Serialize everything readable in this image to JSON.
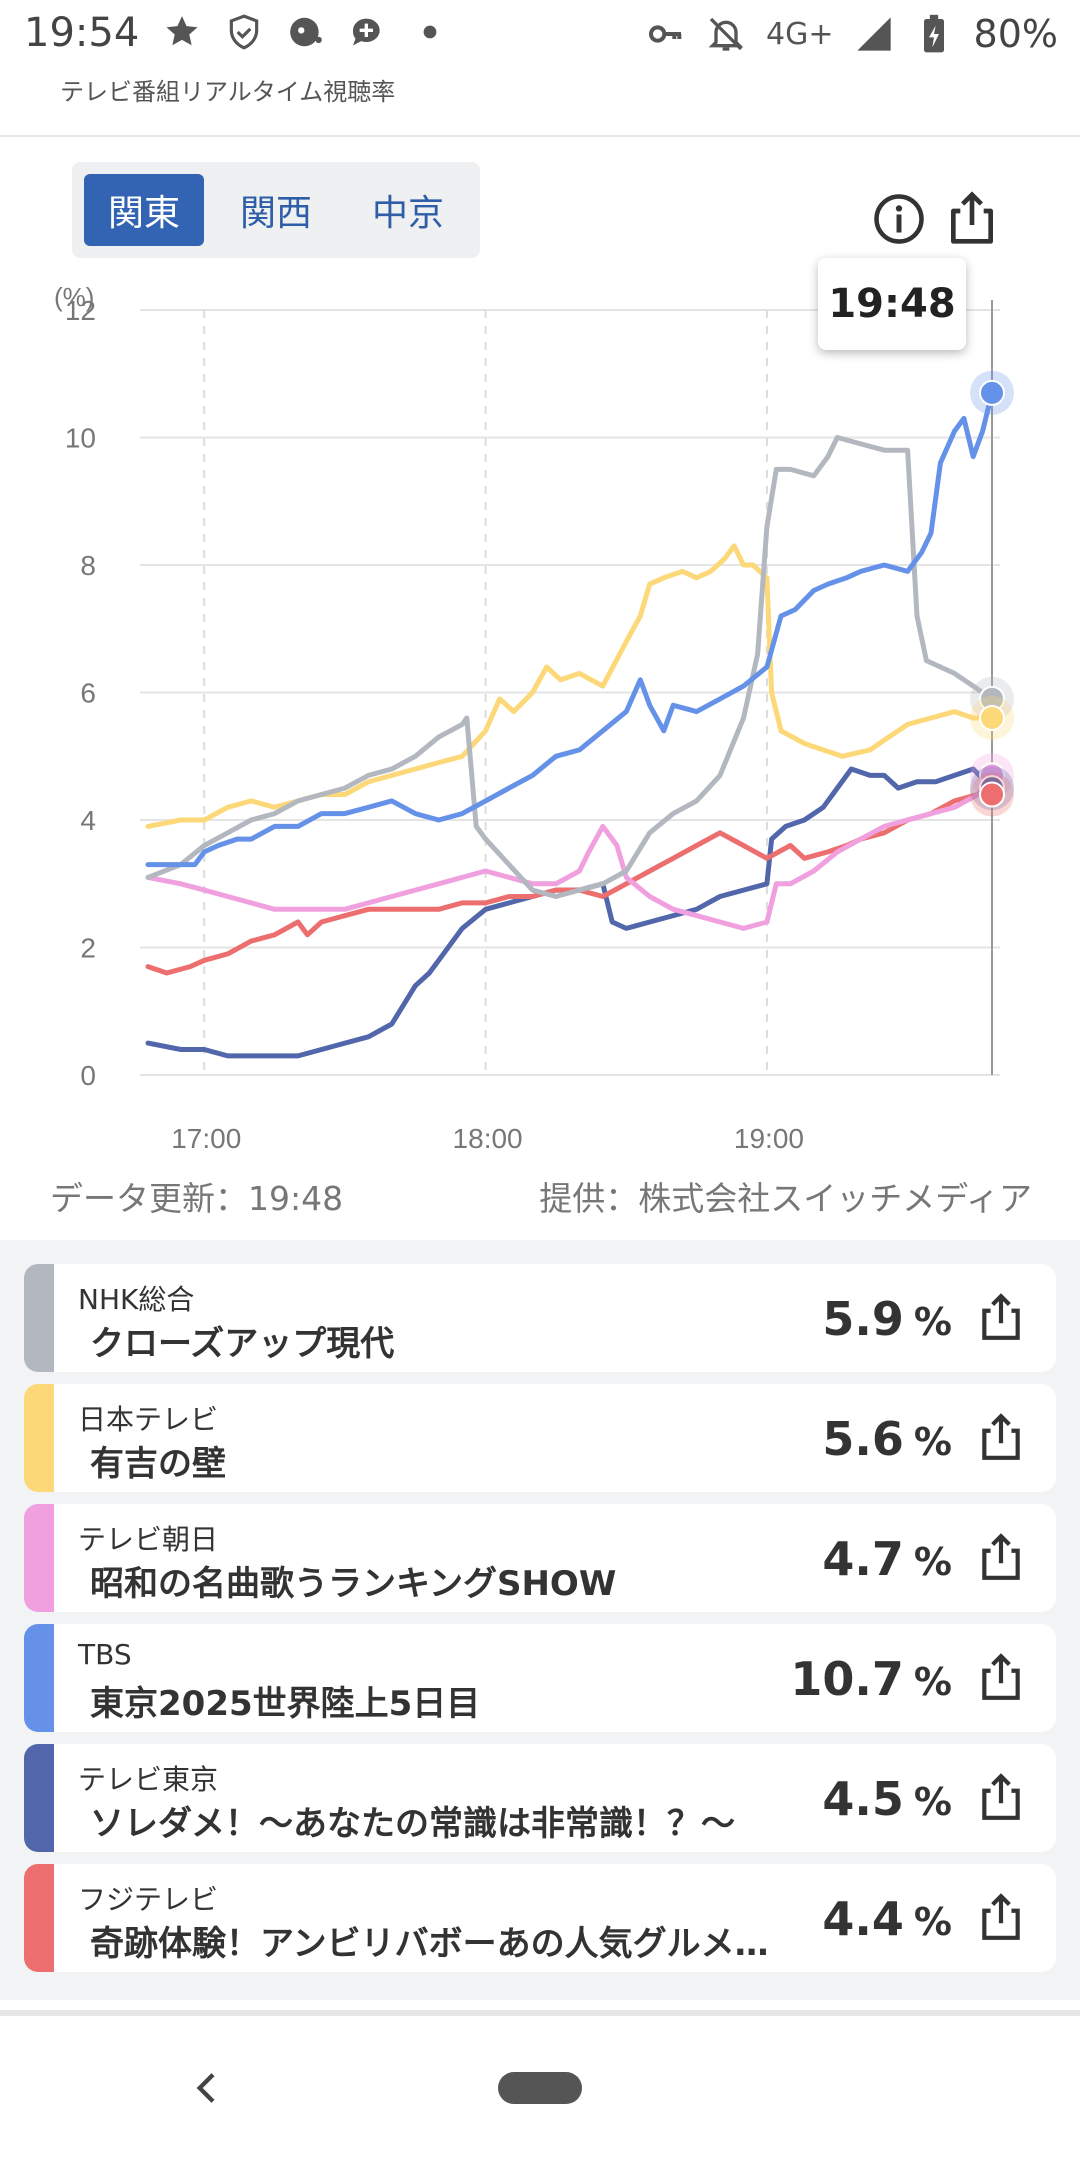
{
  "status_bar": {
    "time": "19:54",
    "network": "4G+",
    "battery": "80%",
    "icons_left": [
      "star-icon",
      "shield-icon",
      "vpn-face-icon",
      "chat-plus-icon",
      "dot-icon"
    ],
    "icons_right": [
      "key-icon",
      "bell-off-icon",
      "signal-icon",
      "battery-icon"
    ]
  },
  "app": {
    "title": "テレビ番組リアルタイム視聴率"
  },
  "tabs": [
    {
      "label": "関東",
      "active": true
    },
    {
      "label": "関西",
      "active": false
    },
    {
      "label": "中京",
      "active": false
    }
  ],
  "toolbar": {
    "info_icon": "info-icon",
    "share_icon": "share-icon"
  },
  "chart_data": {
    "type": "line",
    "ylabel": "(%)",
    "ylim": [
      0,
      12
    ],
    "yticks": [
      "12",
      "10",
      "8",
      "6",
      "4",
      "2",
      "0"
    ],
    "xlim": [
      "16:48",
      "19:48"
    ],
    "xticks": [
      "17:00",
      "18:00",
      "19:00"
    ],
    "cursor_time": "19:48",
    "grid": true,
    "series": [
      {
        "id": "nhk",
        "color": "#b3b8c0",
        "points": [
          [
            "16:48",
            3.1
          ],
          [
            "16:55",
            3.3
          ],
          [
            "17:00",
            3.6
          ],
          [
            "17:05",
            3.8
          ],
          [
            "17:10",
            4.0
          ],
          [
            "17:15",
            4.1
          ],
          [
            "17:20",
            4.3
          ],
          [
            "17:25",
            4.4
          ],
          [
            "17:30",
            4.5
          ],
          [
            "17:35",
            4.7
          ],
          [
            "17:40",
            4.8
          ],
          [
            "17:45",
            5.0
          ],
          [
            "17:50",
            5.3
          ],
          [
            "17:55",
            5.5
          ],
          [
            "17:56",
            5.6
          ],
          [
            "17:58",
            3.9
          ],
          [
            "18:00",
            3.7
          ],
          [
            "18:05",
            3.3
          ],
          [
            "18:10",
            2.9
          ],
          [
            "18:15",
            2.8
          ],
          [
            "18:20",
            2.9
          ],
          [
            "18:25",
            3.0
          ],
          [
            "18:30",
            3.2
          ],
          [
            "18:35",
            3.8
          ],
          [
            "18:40",
            4.1
          ],
          [
            "18:45",
            4.3
          ],
          [
            "18:50",
            4.7
          ],
          [
            "18:55",
            5.6
          ],
          [
            "18:58",
            6.6
          ],
          [
            "19:00",
            8.6
          ],
          [
            "19:02",
            9.5
          ],
          [
            "19:05",
            9.5
          ],
          [
            "19:10",
            9.4
          ],
          [
            "19:13",
            9.7
          ],
          [
            "19:15",
            10.0
          ],
          [
            "19:20",
            9.9
          ],
          [
            "19:25",
            9.8
          ],
          [
            "19:30",
            9.8
          ],
          [
            "19:32",
            7.2
          ],
          [
            "19:34",
            6.5
          ],
          [
            "19:40",
            6.3
          ],
          [
            "19:44",
            6.1
          ],
          [
            "19:48",
            5.9
          ]
        ]
      },
      {
        "id": "ntv",
        "color": "#fdd878",
        "points": [
          [
            "16:48",
            3.9
          ],
          [
            "16:55",
            4.0
          ],
          [
            "17:00",
            4.0
          ],
          [
            "17:05",
            4.2
          ],
          [
            "17:10",
            4.3
          ],
          [
            "17:15",
            4.2
          ],
          [
            "17:20",
            4.3
          ],
          [
            "17:25",
            4.4
          ],
          [
            "17:30",
            4.4
          ],
          [
            "17:35",
            4.6
          ],
          [
            "17:40",
            4.7
          ],
          [
            "17:45",
            4.8
          ],
          [
            "17:50",
            4.9
          ],
          [
            "17:55",
            5.0
          ],
          [
            "18:00",
            5.4
          ],
          [
            "18:03",
            5.9
          ],
          [
            "18:06",
            5.7
          ],
          [
            "18:10",
            6.0
          ],
          [
            "18:13",
            6.4
          ],
          [
            "18:16",
            6.2
          ],
          [
            "18:20",
            6.3
          ],
          [
            "18:25",
            6.1
          ],
          [
            "18:30",
            6.8
          ],
          [
            "18:33",
            7.2
          ],
          [
            "18:35",
            7.7
          ],
          [
            "18:38",
            7.8
          ],
          [
            "18:42",
            7.9
          ],
          [
            "18:45",
            7.8
          ],
          [
            "18:48",
            7.9
          ],
          [
            "18:51",
            8.1
          ],
          [
            "18:53",
            8.3
          ],
          [
            "18:55",
            8.0
          ],
          [
            "18:57",
            8.0
          ],
          [
            "19:00",
            7.8
          ],
          [
            "19:01",
            6.0
          ],
          [
            "19:03",
            5.4
          ],
          [
            "19:08",
            5.2
          ],
          [
            "19:12",
            5.1
          ],
          [
            "19:16",
            5.0
          ],
          [
            "19:22",
            5.1
          ],
          [
            "19:26",
            5.3
          ],
          [
            "19:30",
            5.5
          ],
          [
            "19:35",
            5.6
          ],
          [
            "19:40",
            5.7
          ],
          [
            "19:44",
            5.6
          ],
          [
            "19:48",
            5.6
          ]
        ]
      },
      {
        "id": "tbs",
        "color": "#6592e8",
        "points": [
          [
            "16:48",
            3.3
          ],
          [
            "16:53",
            3.3
          ],
          [
            "16:58",
            3.3
          ],
          [
            "17:00",
            3.5
          ],
          [
            "17:03",
            3.6
          ],
          [
            "17:07",
            3.7
          ],
          [
            "17:10",
            3.7
          ],
          [
            "17:15",
            3.9
          ],
          [
            "17:20",
            3.9
          ],
          [
            "17:25",
            4.1
          ],
          [
            "17:30",
            4.1
          ],
          [
            "17:35",
            4.2
          ],
          [
            "17:40",
            4.3
          ],
          [
            "17:45",
            4.1
          ],
          [
            "17:50",
            4.0
          ],
          [
            "17:55",
            4.1
          ],
          [
            "18:00",
            4.3
          ],
          [
            "18:05",
            4.5
          ],
          [
            "18:10",
            4.7
          ],
          [
            "18:15",
            5.0
          ],
          [
            "18:20",
            5.1
          ],
          [
            "18:25",
            5.4
          ],
          [
            "18:30",
            5.7
          ],
          [
            "18:33",
            6.2
          ],
          [
            "18:35",
            5.8
          ],
          [
            "18:38",
            5.4
          ],
          [
            "18:40",
            5.8
          ],
          [
            "18:45",
            5.7
          ],
          [
            "18:50",
            5.9
          ],
          [
            "18:55",
            6.1
          ],
          [
            "19:00",
            6.4
          ],
          [
            "19:03",
            7.2
          ],
          [
            "19:06",
            7.3
          ],
          [
            "19:10",
            7.6
          ],
          [
            "19:13",
            7.7
          ],
          [
            "19:17",
            7.8
          ],
          [
            "19:20",
            7.9
          ],
          [
            "19:25",
            8.0
          ],
          [
            "19:30",
            7.9
          ],
          [
            "19:33",
            8.2
          ],
          [
            "19:35",
            8.5
          ],
          [
            "19:37",
            9.6
          ],
          [
            "19:40",
            10.1
          ],
          [
            "19:42",
            10.3
          ],
          [
            "19:44",
            9.7
          ],
          [
            "19:46",
            10.1
          ],
          [
            "19:48",
            10.7
          ]
        ]
      },
      {
        "id": "asahi",
        "color": "#f0a0de",
        "points": [
          [
            "16:48",
            3.1
          ],
          [
            "16:55",
            3.0
          ],
          [
            "17:00",
            2.9
          ],
          [
            "17:05",
            2.8
          ],
          [
            "17:10",
            2.7
          ],
          [
            "17:15",
            2.6
          ],
          [
            "17:20",
            2.6
          ],
          [
            "17:25",
            2.6
          ],
          [
            "17:30",
            2.6
          ],
          [
            "17:35",
            2.7
          ],
          [
            "17:40",
            2.8
          ],
          [
            "17:45",
            2.9
          ],
          [
            "17:50",
            3.0
          ],
          [
            "17:55",
            3.1
          ],
          [
            "18:00",
            3.2
          ],
          [
            "18:05",
            3.1
          ],
          [
            "18:10",
            3.0
          ],
          [
            "18:15",
            3.0
          ],
          [
            "18:20",
            3.2
          ],
          [
            "18:22",
            3.5
          ],
          [
            "18:25",
            3.9
          ],
          [
            "18:28",
            3.6
          ],
          [
            "18:30",
            3.1
          ],
          [
            "18:35",
            2.8
          ],
          [
            "18:40",
            2.6
          ],
          [
            "18:45",
            2.5
          ],
          [
            "18:50",
            2.4
          ],
          [
            "18:55",
            2.3
          ],
          [
            "19:00",
            2.4
          ],
          [
            "19:02",
            3.0
          ],
          [
            "19:05",
            3.0
          ],
          [
            "19:10",
            3.2
          ],
          [
            "19:15",
            3.5
          ],
          [
            "19:20",
            3.7
          ],
          [
            "19:25",
            3.9
          ],
          [
            "19:30",
            4.0
          ],
          [
            "19:35",
            4.1
          ],
          [
            "19:40",
            4.2
          ],
          [
            "19:45",
            4.4
          ],
          [
            "19:48",
            4.7
          ]
        ]
      },
      {
        "id": "tx",
        "color": "#5267ab",
        "points": [
          [
            "16:48",
            0.5
          ],
          [
            "16:55",
            0.4
          ],
          [
            "17:00",
            0.4
          ],
          [
            "17:05",
            0.3
          ],
          [
            "17:10",
            0.3
          ],
          [
            "17:15",
            0.3
          ],
          [
            "17:20",
            0.3
          ],
          [
            "17:25",
            0.4
          ],
          [
            "17:30",
            0.5
          ],
          [
            "17:35",
            0.6
          ],
          [
            "17:40",
            0.8
          ],
          [
            "17:45",
            1.4
          ],
          [
            "17:48",
            1.6
          ],
          [
            "17:50",
            1.8
          ],
          [
            "17:55",
            2.3
          ],
          [
            "18:00",
            2.6
          ],
          [
            "18:05",
            2.7
          ],
          [
            "18:10",
            2.8
          ],
          [
            "18:15",
            2.9
          ],
          [
            "18:20",
            2.9
          ],
          [
            "18:25",
            3.0
          ],
          [
            "18:27",
            2.4
          ],
          [
            "18:30",
            2.3
          ],
          [
            "18:35",
            2.4
          ],
          [
            "18:40",
            2.5
          ],
          [
            "18:45",
            2.6
          ],
          [
            "18:50",
            2.8
          ],
          [
            "18:55",
            2.9
          ],
          [
            "19:00",
            3.0
          ],
          [
            "19:01",
            3.7
          ],
          [
            "19:04",
            3.9
          ],
          [
            "19:08",
            4.0
          ],
          [
            "19:12",
            4.2
          ],
          [
            "19:15",
            4.5
          ],
          [
            "19:18",
            4.8
          ],
          [
            "19:22",
            4.7
          ],
          [
            "19:25",
            4.7
          ],
          [
            "19:28",
            4.5
          ],
          [
            "19:32",
            4.6
          ],
          [
            "19:36",
            4.6
          ],
          [
            "19:40",
            4.7
          ],
          [
            "19:44",
            4.8
          ],
          [
            "19:48",
            4.5
          ]
        ]
      },
      {
        "id": "fuji",
        "color": "#ec6e6e",
        "points": [
          [
            "16:48",
            1.7
          ],
          [
            "16:52",
            1.6
          ],
          [
            "16:57",
            1.7
          ],
          [
            "17:00",
            1.8
          ],
          [
            "17:05",
            1.9
          ],
          [
            "17:10",
            2.1
          ],
          [
            "17:15",
            2.2
          ],
          [
            "17:20",
            2.4
          ],
          [
            "17:22",
            2.2
          ],
          [
            "17:25",
            2.4
          ],
          [
            "17:30",
            2.5
          ],
          [
            "17:35",
            2.6
          ],
          [
            "17:40",
            2.6
          ],
          [
            "17:45",
            2.6
          ],
          [
            "17:50",
            2.6
          ],
          [
            "17:55",
            2.7
          ],
          [
            "18:00",
            2.7
          ],
          [
            "18:05",
            2.8
          ],
          [
            "18:10",
            2.8
          ],
          [
            "18:15",
            2.9
          ],
          [
            "18:20",
            2.9
          ],
          [
            "18:25",
            2.8
          ],
          [
            "18:30",
            3.0
          ],
          [
            "18:35",
            3.2
          ],
          [
            "18:40",
            3.4
          ],
          [
            "18:45",
            3.6
          ],
          [
            "18:50",
            3.8
          ],
          [
            "18:55",
            3.6
          ],
          [
            "19:00",
            3.4
          ],
          [
            "19:05",
            3.6
          ],
          [
            "19:08",
            3.4
          ],
          [
            "19:13",
            3.5
          ],
          [
            "19:17",
            3.6
          ],
          [
            "19:20",
            3.7
          ],
          [
            "19:25",
            3.8
          ],
          [
            "19:30",
            4.0
          ],
          [
            "19:35",
            4.1
          ],
          [
            "19:40",
            4.3
          ],
          [
            "19:45",
            4.4
          ],
          [
            "19:48",
            4.4
          ]
        ]
      }
    ]
  },
  "footer": {
    "updated": "データ更新：19:48",
    "provider": "提供：株式会社スイッチメディア"
  },
  "channels": [
    {
      "channel": "NHK総合",
      "program": "クローズアップ現代",
      "rating": "5.9",
      "unit": "%",
      "color": "#b3b8c0"
    },
    {
      "channel": "日本テレビ",
      "program": "有吉の壁",
      "rating": "5.6",
      "unit": "%",
      "color": "#fdd878"
    },
    {
      "channel": "テレビ朝日",
      "program": "昭和の名曲歌うランキングSHOW",
      "rating": "4.7",
      "unit": "%",
      "color": "#f0a0de"
    },
    {
      "channel": "TBS",
      "program": "東京2025世界陸上5日目",
      "rating": "10.7",
      "unit": "%",
      "color": "#6592e8"
    },
    {
      "channel": "テレビ東京",
      "program": "ソレダメ！～あなたの常識は非常識！？～",
      "rating": "4.5",
      "unit": "%",
      "color": "#5267ab"
    },
    {
      "channel": "フジテレビ",
      "program": "奇跡体験！アンビリバボーあの人気グルメ…",
      "rating": "4.4",
      "unit": "%",
      "color": "#ec6e6e"
    }
  ],
  "nav": {
    "back_icon": "back-chevron-icon",
    "home_icon": "home-pill-icon"
  }
}
